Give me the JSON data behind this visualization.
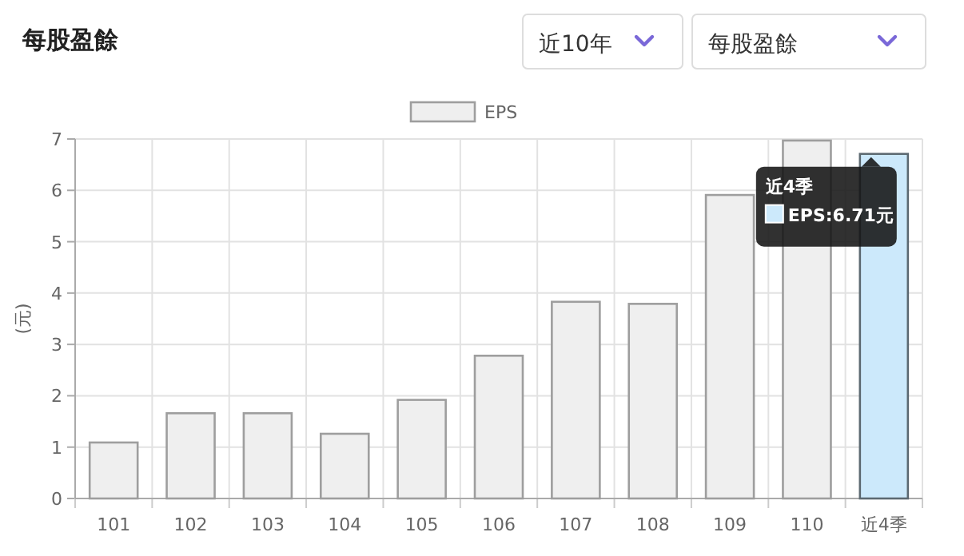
{
  "chart_data": {
    "type": "bar",
    "title": "每股盈餘",
    "ylabel": "(元)",
    "categories": [
      "101",
      "102",
      "103",
      "104",
      "105",
      "106",
      "107",
      "108",
      "109",
      "110",
      "近4季"
    ],
    "series": [
      {
        "name": "EPS",
        "color": "#efefef",
        "colors": [
          "#efefef",
          "#efefef",
          "#efefef",
          "#efefef",
          "#efefef",
          "#efefef",
          "#efefef",
          "#efefef",
          "#efefef",
          "#efefef",
          "#cce9fb"
        ],
        "values": [
          1.09,
          1.66,
          1.66,
          1.26,
          1.92,
          2.78,
          3.83,
          3.79,
          5.91,
          6.97,
          6.71
        ]
      }
    ],
    "ylim": [
      0,
      7
    ],
    "yticks": [
      0,
      1,
      2,
      3,
      4,
      5,
      6,
      7
    ],
    "grid": true,
    "legend": "top",
    "annotations": [
      "近10年",
      "每股盈餘",
      "近4季",
      {
        "text": "EPS:6.71元",
        "x": "近4季",
        "y": 6.71
      }
    ]
  }
}
